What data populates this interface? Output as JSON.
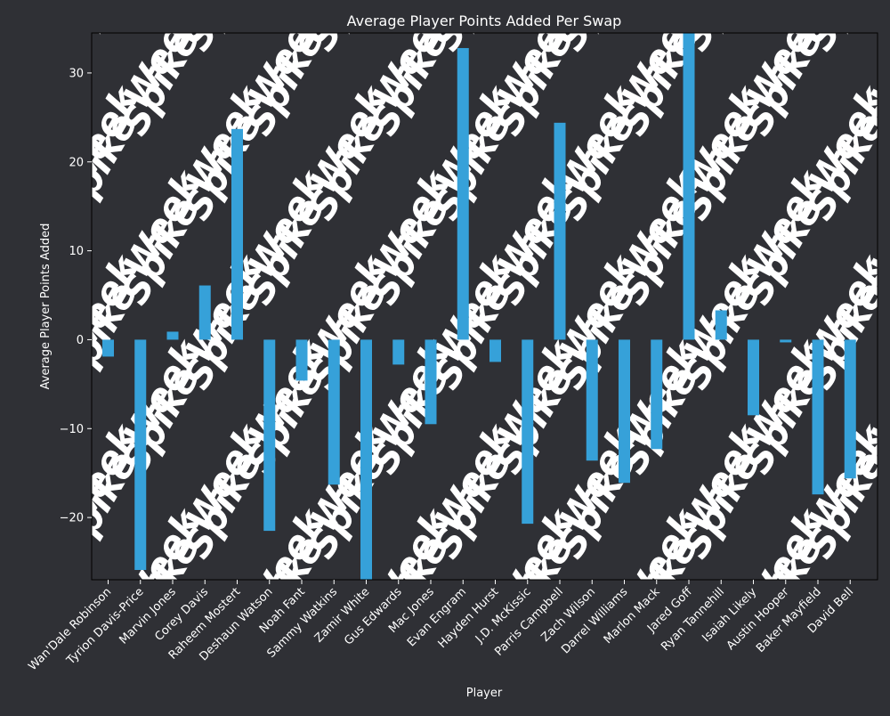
{
  "chart_data": {
    "type": "bar",
    "title": "Average Player Points Added Per Swap",
    "xlabel": "Player",
    "ylabel": "Average Player Points Added",
    "ylim": [
      -27,
      34.5
    ],
    "yticks": [
      -20,
      -10,
      0,
      10,
      20,
      30
    ],
    "ytick_labels": [
      "−20",
      "−10",
      "0",
      "10",
      "20",
      "30"
    ],
    "grid": false,
    "legend": "none",
    "watermark": "Spike Week",
    "colors": {
      "background": "#2f3035",
      "bar": "#36a1d9",
      "text": "#ffffff",
      "watermark": "#3e3f45"
    },
    "categories": [
      "Wan'Dale Robinson",
      "Tyrion Davis-Price",
      "Marvin Jones",
      "Corey Davis",
      "Raheem Mostert",
      "Deshaun Watson",
      "Noah Fant",
      "Sammy Watkins",
      "Zamir White",
      "Gus Edwards",
      "Mac Jones",
      "Evan Engram",
      "Hayden Hurst",
      "J.D. McKissic",
      "Parris Campbell",
      "Zach Wilson",
      "Darrel Williams",
      "Marlon Mack",
      "Jared Goff",
      "Ryan Tannehill",
      "Isaiah Likely",
      "Austin Hooper",
      "Baker Mayfield",
      "David Bell"
    ],
    "values": [
      -1.9,
      -25.9,
      0.9,
      6.1,
      23.7,
      -21.5,
      -4.6,
      -16.3,
      -27.2,
      -2.8,
      -9.5,
      32.8,
      -2.5,
      -20.7,
      24.4,
      -13.6,
      -16.1,
      -12.3,
      34.6,
      3.3,
      -8.5,
      -0.3,
      -17.4,
      -15.6
    ]
  }
}
